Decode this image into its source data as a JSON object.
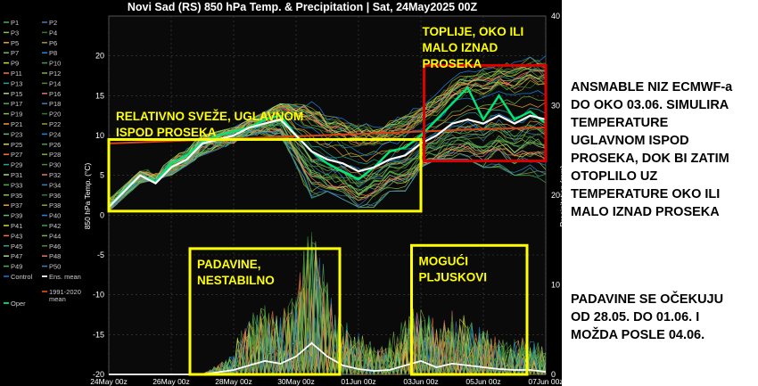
{
  "chart_data": {
    "type": "line",
    "title": "Novi Sad  (RS)  850 hPa Temp. & Precipitation | Sat, 24May2025 00Z",
    "ylabel": "850 hPa Temp. (°C)",
    "y2label": "Precipitation (mm)",
    "ylim": [
      -20,
      25
    ],
    "y2lim": [
      0,
      40
    ],
    "yticks": [
      -20,
      -15,
      -10,
      -5,
      0,
      5,
      10,
      15,
      20
    ],
    "y2ticks": [
      0,
      10,
      20,
      30,
      40
    ],
    "x_start": "24May 00z",
    "x_end": "07Jun 00z",
    "xticks": [
      "24May 00z",
      "26May 00z",
      "28May 00z",
      "30May 00z",
      "01Jun 00z",
      "03Jun 00z",
      "05Jun 00z",
      "07Jun 00z"
    ],
    "legend": {
      "placement": "left",
      "members": [
        "P1",
        "P2",
        "P3",
        "P4",
        "P5",
        "P6",
        "P7",
        "P8",
        "P9",
        "P10",
        "P11",
        "P12",
        "P13",
        "P14",
        "P15",
        "P16",
        "P17",
        "P18",
        "P19",
        "P20",
        "P21",
        "P22",
        "P23",
        "P24",
        "P25",
        "P26",
        "P27",
        "P28",
        "P29",
        "P30",
        "P31",
        "P32",
        "P33",
        "P34",
        "P35",
        "P36",
        "P37",
        "P38",
        "P39",
        "P40",
        "P41",
        "P42",
        "P43",
        "P44",
        "P45",
        "P46",
        "P47",
        "P48",
        "P49",
        "P50"
      ],
      "extras": [
        "Control",
        "Ens. mean",
        "1991-2020 mean",
        "Oper"
      ]
    },
    "colors": {
      "members": [
        "#4caf50",
        "#3f7fbf",
        "#8bc34a",
        "#2e7d32",
        "#f0a030",
        "#9e9d24",
        "#66bb6a",
        "#1e88e5",
        "#cddc39",
        "#43a047",
        "#ff7043",
        "#7cb342",
        "#26a69a",
        "#558b2f",
        "#aed581",
        "#e57373"
      ],
      "ens_mean": "#ffffff",
      "clim_mean": "#d84315",
      "oper": "#00e676",
      "control": "#1565c0",
      "box_yellow": "#ffff00",
      "box_red": "#dd0000"
    },
    "series": [
      {
        "name": "Ens. mean",
        "x_days": [
          0,
          0.5,
          1,
          1.5,
          2,
          2.5,
          3,
          3.5,
          4,
          4.5,
          5,
          5.5,
          6,
          6.5,
          7,
          7.5,
          8,
          8.5,
          9,
          9.5,
          10,
          10.5,
          11,
          11.5,
          12,
          12.5,
          13,
          13.5,
          14
        ],
        "values": [
          1,
          3,
          5,
          4,
          6,
          7,
          9,
          9.5,
          10,
          11,
          11.5,
          12,
          10,
          8,
          7,
          6.5,
          5.5,
          6,
          7,
          7.5,
          9,
          10,
          11.5,
          12,
          11.5,
          12.5,
          11.5,
          12.5,
          12
        ]
      },
      {
        "name": "1991-2020 mean",
        "x_days": [
          0,
          2,
          4,
          6,
          8,
          10,
          12,
          14
        ],
        "values": [
          9,
          9.3,
          9.6,
          9.9,
          10.2,
          10.5,
          10.8,
          11
        ]
      },
      {
        "name": "Oper",
        "x_days": [
          0,
          0.5,
          1,
          1.5,
          2,
          2.5,
          3,
          3.5,
          4,
          4.5,
          5,
          5.5,
          6,
          6.5,
          7,
          7.5,
          8,
          8.5,
          9,
          9.5,
          10,
          10.5,
          11,
          11.5,
          12,
          12.5,
          13,
          13.5,
          14
        ],
        "values": [
          1,
          3.2,
          5,
          4.2,
          6.5,
          7.5,
          9.2,
          10,
          10.5,
          11,
          12,
          12.5,
          10,
          8,
          6.5,
          5.5,
          4.5,
          6,
          8,
          8.5,
          10,
          12,
          14,
          16,
          12,
          15,
          12,
          13,
          11.5
        ]
      },
      {
        "name": "Precipitation ens. mean",
        "axis": "right",
        "x_days": [
          0,
          1,
          2,
          3,
          4,
          4.5,
          5,
          5.5,
          6,
          6.5,
          7,
          7.5,
          8,
          8.5,
          9,
          9.5,
          10,
          10.5,
          11,
          11.5,
          12,
          12.5,
          13,
          13.5,
          14
        ],
        "values": [
          0,
          0,
          0,
          0,
          0.5,
          1,
          1.5,
          1.2,
          2,
          3.5,
          2,
          1,
          0.6,
          0.4,
          0.5,
          1,
          1.5,
          0.8,
          1.2,
          1,
          0.8,
          0.6,
          0.5,
          0.5,
          0.3
        ]
      }
    ],
    "spread": {
      "name": "Ensemble members P1-P50",
      "x_days": [
        0,
        1,
        2,
        3,
        4,
        4.5,
        5,
        5.5,
        6,
        6.5,
        7,
        7.5,
        8,
        8.5,
        9,
        9.5,
        10,
        10.5,
        11,
        11.5,
        12,
        12.5,
        13,
        13.5,
        14
      ],
      "min": [
        0.5,
        4,
        5,
        7.5,
        9,
        10,
        10,
        9,
        5,
        2,
        3,
        2,
        1,
        1,
        3,
        3,
        6,
        7,
        7,
        7,
        6,
        6,
        5,
        5,
        4
      ],
      "max": [
        2,
        5.5,
        7,
        10,
        11,
        12,
        13,
        14,
        14,
        15,
        15,
        14,
        14,
        12,
        13,
        14,
        16,
        18,
        19,
        20,
        21,
        20,
        21,
        21,
        21
      ]
    },
    "annotations": [
      {
        "text": "TOPLIJE, OKO ILI\nMALO IZNAD\nPROSEKA",
        "box": "red",
        "x_days": [
          10.1,
          14
        ],
        "y": [
          6.8,
          18.8
        ]
      },
      {
        "text": "RELATIVNO SVEŽE, UGLAVNOM\nISPOD PROSEKA",
        "box": "yellow",
        "x_days": [
          0,
          10
        ],
        "y": [
          0.5,
          9.5
        ]
      },
      {
        "text": "PADAVINE,\nNESTABILNO",
        "box": "yellow",
        "x_days": [
          2.6,
          7.4
        ],
        "y": [
          -20,
          -4.2
        ]
      },
      {
        "text": "MOGUĆI\nPLJUSKOVI",
        "box": "yellow",
        "x_days": [
          9.7,
          13.4
        ],
        "y": [
          -20,
          -3.8
        ]
      }
    ]
  },
  "side_notes": {
    "note1": "ANSMABLE NIZ ECMWF-a\nDO OKO 03.06. SIMULIRA\nTEMPERATURE\nUGLAVNOM ISPOD\nPROSEKA, DOK BI ZATIM\nOTOPLILO UZ\nTEMPERATURE OKO ILI\nMALO IZNAD PROSEKA",
    "note2": "PADAVINE SE OČEKUJU\nOD 28.05. DO 01.06. I\nMOŽDA POSLE 04.06."
  }
}
